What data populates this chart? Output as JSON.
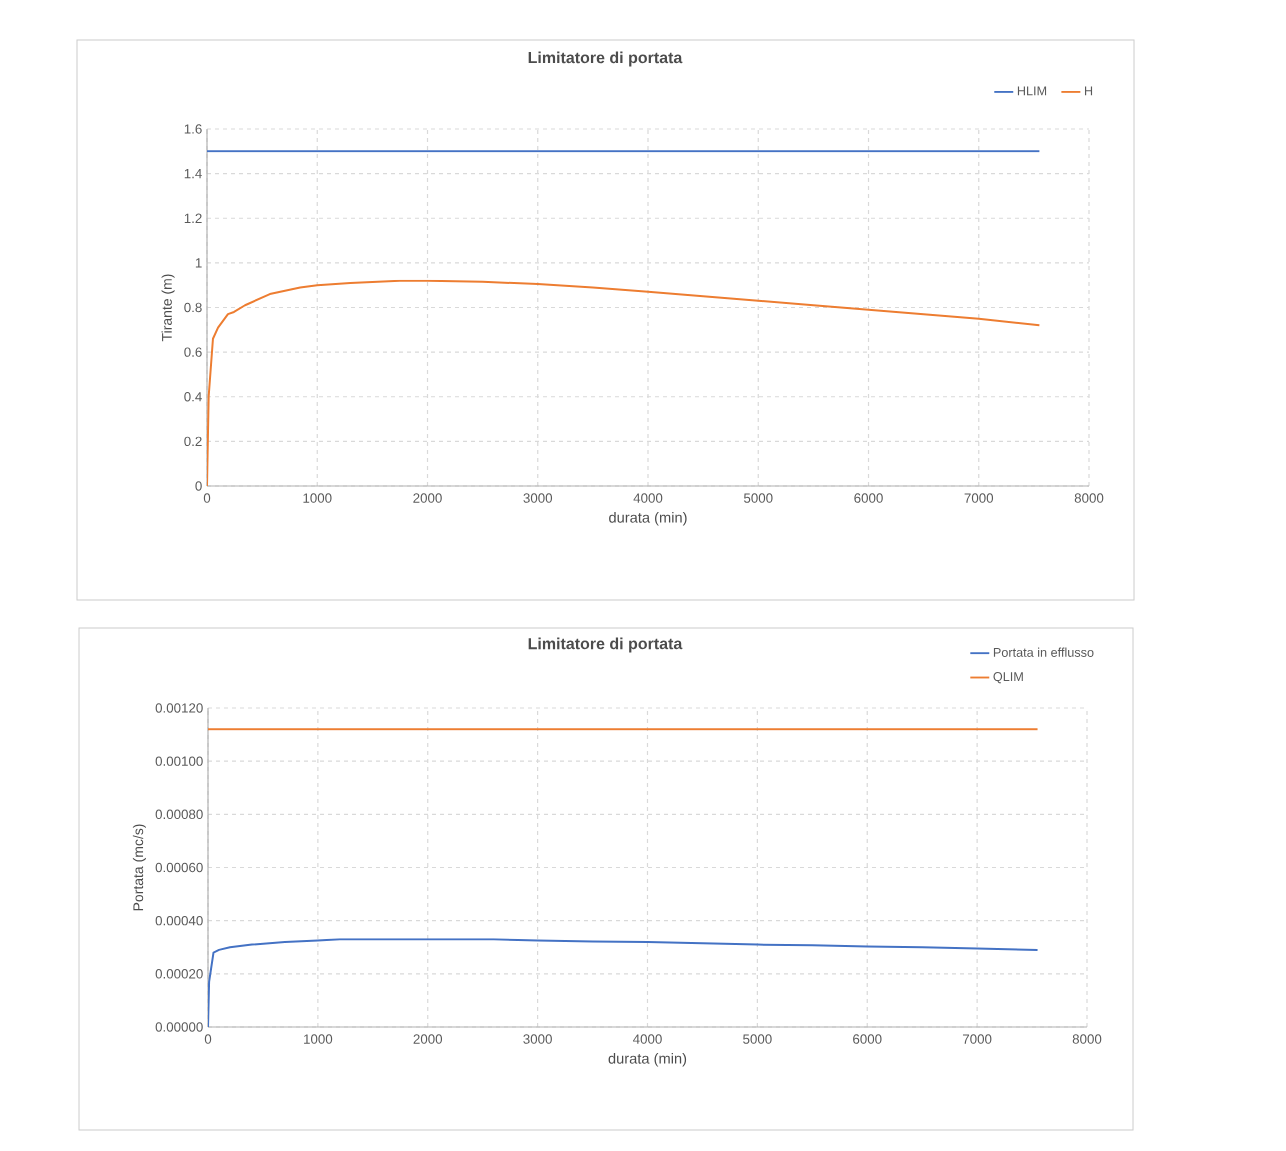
{
  "chart_data": [
    {
      "type": "line",
      "title": "Limitatore di portata",
      "xlabel": "durata (min)",
      "ylabel": "Tirante (m)",
      "series": [
        {
          "name": "HLIM",
          "color": "#4472c4",
          "x": [
            0,
            7550
          ],
          "values": [
            1.5,
            1.5
          ]
        },
        {
          "name": "H",
          "color": "#ed7d31",
          "x": [
            0,
            15,
            54,
            100,
            190,
            245,
            345,
            570,
            845,
            1000,
            1300,
            1750,
            2000,
            2500,
            3000,
            3500,
            4000,
            4500,
            5000,
            5500,
            6000,
            6500,
            7000,
            7550
          ],
          "values": [
            0,
            0.4,
            0.66,
            0.71,
            0.77,
            0.78,
            0.81,
            0.86,
            0.89,
            0.9,
            0.91,
            0.92,
            0.92,
            0.915,
            0.905,
            0.89,
            0.87,
            0.85,
            0.83,
            0.81,
            0.79,
            0.77,
            0.75,
            0.72
          ]
        }
      ],
      "xlim": [
        0,
        8000
      ],
      "ylim": [
        0,
        1.6
      ],
      "xticks": [
        0,
        1000,
        2000,
        3000,
        4000,
        5000,
        6000,
        7000,
        8000
      ],
      "yticks": [
        0,
        0.2,
        0.4,
        0.6,
        0.8,
        1,
        1.2,
        1.4,
        1.6
      ],
      "grid": true,
      "legend": "top right",
      "line_style": "solid"
    },
    {
      "type": "line",
      "title": "Limitatore di portata",
      "xlabel": "durata (min)",
      "ylabel": "Portata (mc/s)",
      "series": [
        {
          "name": "Portata in efflusso",
          "color": "#4472c4",
          "x": [
            0,
            10,
            50,
            100,
            200,
            400,
            700,
            1000,
            1200,
            2000,
            2600,
            3000,
            3500,
            4000,
            4500,
            5000,
            5500,
            6000,
            6500,
            7000,
            7550
          ],
          "values": [
            0,
            0.00017,
            0.00028,
            0.00029,
            0.0003,
            0.00031,
            0.00032,
            0.000325,
            0.00033,
            0.00033,
            0.00033,
            0.000325,
            0.000322,
            0.00032,
            0.000315,
            0.00031,
            0.000307,
            0.000303,
            0.0003,
            0.000295,
            0.00029
          ]
        },
        {
          "name": "QLIM",
          "color": "#ed7d31",
          "x": [
            0,
            7550
          ],
          "values": [
            0.00112,
            0.00112
          ]
        }
      ],
      "xlim": [
        0,
        8000
      ],
      "ylim": [
        0,
        0.0012
      ],
      "xticks": [
        0,
        1000,
        2000,
        3000,
        4000,
        5000,
        6000,
        7000,
        8000
      ],
      "yticks": [
        {
          "value": 0,
          "label": "0.00000"
        },
        {
          "value": 0.0002,
          "label": "0.00020"
        },
        {
          "value": 0.0004,
          "label": "0.00040"
        },
        {
          "value": 0.0006,
          "label": "0.00060"
        },
        {
          "value": 0.0008,
          "label": "0.00080"
        },
        {
          "value": 0.001,
          "label": "0.00100"
        },
        {
          "value": 0.0012,
          "label": "0.00120"
        }
      ],
      "grid": true,
      "legend": "top right",
      "line_style": "solid"
    }
  ]
}
